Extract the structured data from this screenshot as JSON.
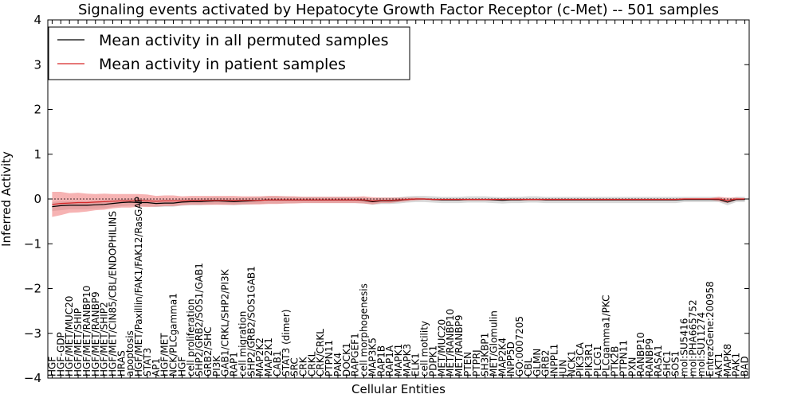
{
  "chart_data": {
    "type": "line",
    "title": "Signaling events activated by Hepatocyte Growth Factor Receptor (c-Met) -- 501 samples",
    "xlabel": "Cellular Entities",
    "ylabel": "Inferred Activity",
    "ylim": [
      -4,
      4
    ],
    "yticks": [
      -4,
      -3,
      -2,
      -1,
      0,
      1,
      2,
      3,
      4
    ],
    "grid": false,
    "legend_position": "top-left",
    "categories": [
      "HGF",
      "HGF-GDP",
      "HGF/MET/MUC20",
      "HGF/MET/SHIP",
      "HGF/MET/RANBP10",
      "HGF/MET/RANBP9",
      "HGF/MET/SHIP2",
      "HGF/MET/CIN85/CBL/ENDOPHILINS",
      "HRAS",
      "apoptosis",
      "HGF/MET/Paxillin/FAK1/FAK12/RasGAP",
      "STAT3",
      "AP1",
      "HGF/MET",
      "NCK/PLCgamma1",
      "HGF",
      "cell proliferation",
      "SHP2/GRB2/SOS1/GAB1",
      "GRB2/SHC",
      "PI3K",
      "GAB1/CRKL/SHP2/PI3K",
      "RAP1",
      "cell migration",
      "SHP2/GRB2/SOS1GAB1",
      "MAP2K2",
      "MAP2K1",
      "CAB1",
      "STAT3 (dimer)",
      "SRC",
      "CRK",
      "CRKL",
      "CRK/CRKL",
      "PTPN11",
      "PAK4",
      "DOCK1",
      "RAPGEF1",
      "cell morphogenesis",
      "MAP3K5",
      "RAP1B",
      "RAP1A",
      "MAPK1",
      "MAPK3",
      "ELK1",
      "cell motility",
      "PDPK1",
      "MET/MUC20",
      "MET/RANBP10",
      "MET/RANBP9",
      "PTEN",
      "PTPRJ",
      "SH3KBP1",
      "MET/Glomulin",
      "MAP2K4",
      "INPP5D",
      "GO:0007205",
      "CBL",
      "GLMN",
      "GRB2",
      "INPPL1",
      "JUN",
      "NCK1",
      "PIK3CA",
      "PIK3R1",
      "PLCG1",
      "PLCgamma1/PKC",
      "PTK2B",
      "PTPN11",
      "PXN",
      "RANBP10",
      "RANBP9",
      "RASA1",
      "SHC1",
      "SOS1",
      "mol:SU5416",
      "mol:PHA665752",
      "mol:SU11274",
      "EntrezGene:200958",
      "AKT1",
      "MAPK8",
      "PAK1",
      "BAD"
    ],
    "series": [
      {
        "name": "Mean activity in all permuted samples",
        "color": "#000000",
        "values": [
          -0.17,
          -0.15,
          -0.14,
          -0.14,
          -0.14,
          -0.13,
          -0.12,
          -0.1,
          -0.08,
          -0.07,
          -0.08,
          -0.08,
          -0.1,
          -0.09,
          -0.09,
          -0.07,
          -0.06,
          -0.06,
          -0.05,
          -0.04,
          -0.05,
          -0.06,
          -0.05,
          -0.04,
          -0.03,
          -0.02,
          -0.02,
          -0.02,
          -0.02,
          -0.02,
          -0.02,
          -0.02,
          -0.02,
          -0.02,
          -0.02,
          -0.02,
          -0.03,
          -0.06,
          -0.04,
          -0.04,
          -0.03,
          -0.01,
          0.0,
          0.0,
          -0.01,
          -0.02,
          -0.02,
          -0.02,
          -0.01,
          -0.01,
          -0.01,
          -0.02,
          -0.03,
          -0.02,
          -0.02,
          -0.01,
          -0.01,
          -0.02,
          -0.02,
          -0.02,
          -0.02,
          -0.02,
          -0.02,
          -0.02,
          -0.02,
          -0.02,
          -0.02,
          -0.02,
          -0.02,
          -0.02,
          -0.02,
          -0.02,
          -0.02,
          -0.01,
          -0.01,
          -0.01,
          -0.01,
          -0.01,
          -0.07,
          -0.01,
          -0.01
        ]
      },
      {
        "name": "Mean activity in patient samples",
        "color": "#d62728",
        "values": [
          -0.12,
          -0.1,
          -0.09,
          -0.08,
          -0.08,
          -0.07,
          -0.06,
          -0.05,
          -0.04,
          -0.04,
          -0.03,
          -0.04,
          -0.05,
          -0.04,
          -0.04,
          -0.04,
          -0.03,
          -0.03,
          -0.03,
          -0.03,
          -0.03,
          -0.03,
          -0.03,
          -0.03,
          -0.03,
          -0.02,
          -0.02,
          -0.02,
          -0.02,
          -0.02,
          -0.02,
          -0.02,
          -0.02,
          -0.02,
          -0.02,
          -0.02,
          -0.02,
          -0.04,
          -0.03,
          -0.03,
          -0.02,
          -0.01,
          0.0,
          0.0,
          -0.01,
          -0.01,
          -0.01,
          -0.01,
          -0.01,
          -0.01,
          -0.01,
          -0.01,
          -0.01,
          -0.01,
          -0.01,
          -0.01,
          -0.01,
          -0.01,
          -0.01,
          -0.01,
          -0.01,
          -0.01,
          -0.01,
          -0.01,
          -0.01,
          -0.01,
          -0.01,
          -0.01,
          -0.01,
          -0.01,
          -0.01,
          -0.01,
          -0.01,
          0.0,
          0.0,
          0.0,
          0.0,
          0.0,
          -0.03,
          0.0,
          0.0
        ]
      }
    ],
    "band_permuted": {
      "color": "#c8c8c8",
      "halfwidth": [
        0.1,
        0.1,
        0.09,
        0.09,
        0.09,
        0.09,
        0.09,
        0.08,
        0.08,
        0.08,
        0.08,
        0.08,
        0.08,
        0.08,
        0.08,
        0.08,
        0.08,
        0.08,
        0.08,
        0.08,
        0.08,
        0.08,
        0.08,
        0.08,
        0.08,
        0.08,
        0.08,
        0.08,
        0.07,
        0.07,
        0.07,
        0.07,
        0.07,
        0.07,
        0.07,
        0.07,
        0.07,
        0.07,
        0.07,
        0.07,
        0.07,
        0.07,
        0.07,
        0.07,
        0.07,
        0.07,
        0.07,
        0.07,
        0.07,
        0.07,
        0.07,
        0.07,
        0.07,
        0.07,
        0.07,
        0.07,
        0.07,
        0.07,
        0.07,
        0.07,
        0.07,
        0.07,
        0.07,
        0.07,
        0.07,
        0.07,
        0.07,
        0.07,
        0.07,
        0.07,
        0.07,
        0.07,
        0.07,
        0.06,
        0.06,
        0.06,
        0.06,
        0.06,
        0.07,
        0.06,
        0.06
      ]
    },
    "band_patient": {
      "color": "#f08080",
      "halfwidth": [
        0.28,
        0.26,
        0.22,
        0.22,
        0.2,
        0.18,
        0.18,
        0.16,
        0.15,
        0.15,
        0.14,
        0.14,
        0.12,
        0.12,
        0.12,
        0.1,
        0.1,
        0.1,
        0.1,
        0.1,
        0.1,
        0.1,
        0.09,
        0.09,
        0.09,
        0.09,
        0.09,
        0.08,
        0.08,
        0.07,
        0.07,
        0.07,
        0.07,
        0.07,
        0.07,
        0.07,
        0.08,
        0.08,
        0.06,
        0.06,
        0.05,
        0.04,
        0.03,
        0.02,
        0.02,
        0.02,
        0.02,
        0.02,
        0.02,
        0.02,
        0.02,
        0.02,
        0.02,
        0.02,
        0.02,
        0.02,
        0.02,
        0.02,
        0.02,
        0.02,
        0.02,
        0.02,
        0.02,
        0.02,
        0.02,
        0.02,
        0.02,
        0.02,
        0.02,
        0.02,
        0.02,
        0.02,
        0.02,
        0.02,
        0.02,
        0.02,
        0.02,
        0.05,
        0.06,
        0.03,
        0.02
      ]
    }
  }
}
